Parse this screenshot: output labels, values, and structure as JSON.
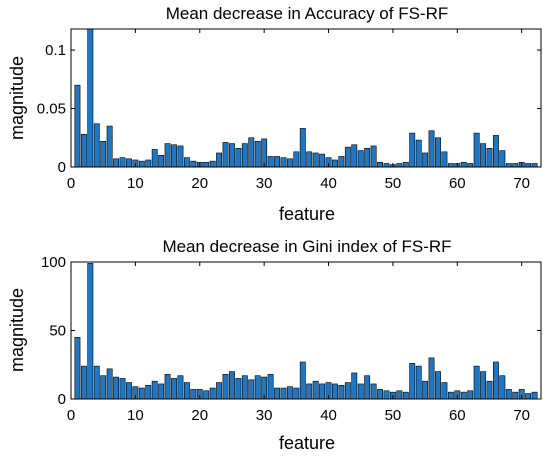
{
  "chart_data": [
    {
      "type": "bar",
      "title": "Mean decrease in Accuracy of FS-RF",
      "xlabel": "feature",
      "ylabel": "magnitude",
      "xlim": [
        0,
        73
      ],
      "ylim": [
        0,
        0.118
      ],
      "xticks": [
        0,
        10,
        20,
        30,
        40,
        50,
        60,
        70
      ],
      "yticks": [
        0,
        0.05,
        0.1
      ],
      "ytick_labels": [
        "0",
        "0.05",
        "0.1"
      ],
      "bar_color": "#1f77c4",
      "grid": false,
      "x": [
        1,
        2,
        3,
        4,
        5,
        6,
        7,
        8,
        9,
        10,
        11,
        12,
        13,
        14,
        15,
        16,
        17,
        18,
        19,
        20,
        21,
        22,
        23,
        24,
        25,
        26,
        27,
        28,
        29,
        30,
        31,
        32,
        33,
        34,
        35,
        36,
        37,
        38,
        39,
        40,
        41,
        42,
        43,
        44,
        45,
        46,
        47,
        48,
        49,
        50,
        51,
        52,
        53,
        54,
        55,
        56,
        57,
        58,
        59,
        60,
        61,
        62,
        63,
        64,
        65,
        66,
        67,
        68,
        69,
        70,
        71,
        72
      ],
      "values": [
        0.07,
        0.028,
        0.118,
        0.037,
        0.022,
        0.035,
        0.007,
        0.008,
        0.007,
        0.006,
        0.005,
        0.006,
        0.015,
        0.01,
        0.02,
        0.019,
        0.018,
        0.008,
        0.005,
        0.004,
        0.004,
        0.005,
        0.012,
        0.021,
        0.02,
        0.016,
        0.02,
        0.025,
        0.022,
        0.024,
        0.009,
        0.009,
        0.008,
        0.007,
        0.013,
        0.033,
        0.013,
        0.012,
        0.011,
        0.008,
        0.006,
        0.009,
        0.017,
        0.019,
        0.014,
        0.016,
        0.018,
        0.004,
        0.003,
        0.002,
        0.003,
        0.004,
        0.029,
        0.023,
        0.012,
        0.031,
        0.025,
        0.013,
        0.003,
        0.003,
        0.004,
        0.003,
        0.029,
        0.02,
        0.016,
        0.027,
        0.014,
        0.003,
        0.003,
        0.004,
        0.003,
        0.003
      ]
    },
    {
      "type": "bar",
      "title": "Mean decrease in Gini index of FS-RF",
      "xlabel": "feature",
      "ylabel": "magnitude",
      "xlim": [
        0,
        73
      ],
      "ylim": [
        0,
        100
      ],
      "xticks": [
        0,
        10,
        20,
        30,
        40,
        50,
        60,
        70
      ],
      "yticks": [
        0,
        50,
        100
      ],
      "ytick_labels": [
        "0",
        "50",
        "100"
      ],
      "bar_color": "#1f77c4",
      "grid": false,
      "x": [
        1,
        2,
        3,
        4,
        5,
        6,
        7,
        8,
        9,
        10,
        11,
        12,
        13,
        14,
        15,
        16,
        17,
        18,
        19,
        20,
        21,
        22,
        23,
        24,
        25,
        26,
        27,
        28,
        29,
        30,
        31,
        32,
        33,
        34,
        35,
        36,
        37,
        38,
        39,
        40,
        41,
        42,
        43,
        44,
        45,
        46,
        47,
        48,
        49,
        50,
        51,
        52,
        53,
        54,
        55,
        56,
        57,
        58,
        59,
        60,
        61,
        62,
        63,
        64,
        65,
        66,
        67,
        68,
        69,
        70,
        71,
        72
      ],
      "values": [
        45,
        24,
        99,
        24,
        17,
        22,
        16,
        15,
        12,
        9,
        8,
        10,
        13,
        11,
        18,
        15,
        17,
        12,
        7,
        7,
        6,
        8,
        12,
        18,
        20,
        15,
        17,
        14,
        17,
        16,
        18,
        8,
        8,
        9,
        8,
        27,
        11,
        13,
        11,
        12,
        11,
        10,
        12,
        19,
        11,
        17,
        11,
        7,
        6,
        5,
        6,
        5,
        26,
        24,
        13,
        30,
        20,
        12,
        5,
        6,
        5,
        6,
        24,
        20,
        13,
        27,
        17,
        7,
        5,
        7,
        4,
        5
      ]
    }
  ]
}
